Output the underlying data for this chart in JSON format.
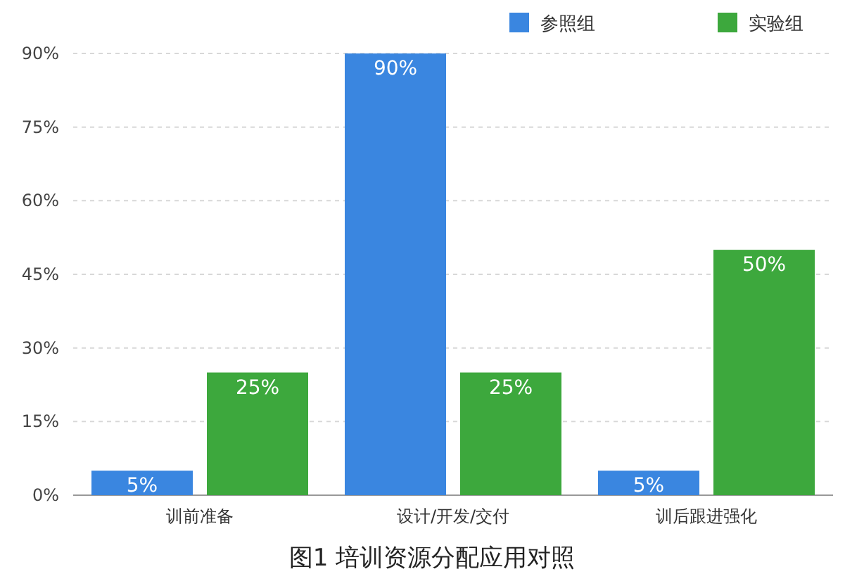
{
  "chart_data": {
    "type": "bar",
    "title": "图1  培训资源分配应用对照",
    "categories": [
      "训前准备",
      "设计/开发/交付",
      "训后跟进强化"
    ],
    "series": [
      {
        "name": "参照组",
        "color": "#3a86e0",
        "values": [
          5,
          90,
          5
        ],
        "value_labels": [
          "5%",
          "90%",
          "5%"
        ]
      },
      {
        "name": "实验组",
        "color": "#3da83d",
        "values": [
          25,
          25,
          50
        ],
        "value_labels": [
          "25%",
          "25%",
          "50%"
        ]
      }
    ],
    "ylim": [
      0,
      90
    ],
    "yticks": [
      {
        "value": 0,
        "label": "0%"
      },
      {
        "value": 15,
        "label": "15%"
      },
      {
        "value": 30,
        "label": "30%"
      },
      {
        "value": 45,
        "label": "45%"
      },
      {
        "value": 60,
        "label": "60%"
      },
      {
        "value": 75,
        "label": "75%"
      },
      {
        "value": 90,
        "label": "90%"
      }
    ],
    "grid": "y",
    "legend": "top right"
  }
}
